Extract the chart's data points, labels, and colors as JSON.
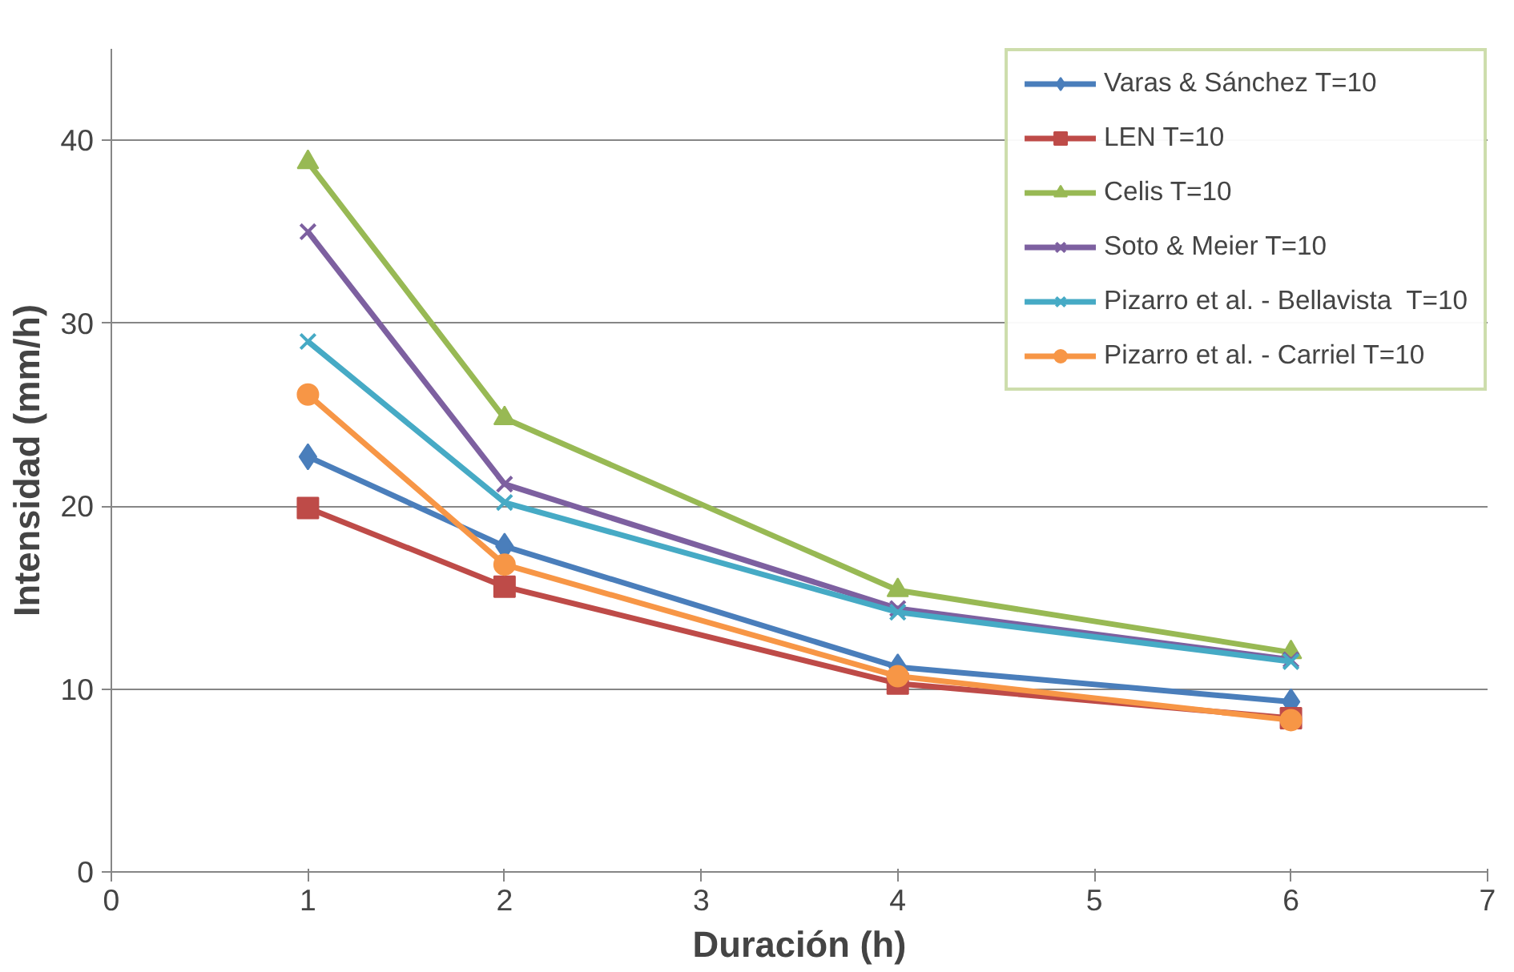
{
  "chart_data": {
    "type": "line",
    "xlabel": "Duración (h)",
    "ylabel": "Intensidad (mm/h)",
    "x": [
      1,
      2,
      4,
      6
    ],
    "xlim": [
      0,
      7
    ],
    "xticks": [
      0,
      1,
      2,
      3,
      4,
      5,
      6,
      7
    ],
    "ylim": [
      0,
      45
    ],
    "yticks": [
      0,
      10,
      20,
      30,
      40
    ],
    "grid": "y",
    "legend": "top right",
    "series": [
      {
        "name": "Varas & Sánchez T=10",
        "color": "#4a7ebb",
        "marker": "diamond",
        "values": [
          22.7,
          17.8,
          11.2,
          9.3
        ]
      },
      {
        "name": "LEN T=10",
        "color": "#be4b48",
        "marker": "square",
        "values": [
          19.9,
          15.6,
          10.3,
          8.4
        ]
      },
      {
        "name": "Celis T=10",
        "color": "#98b954",
        "marker": "triangle",
        "values": [
          38.8,
          24.8,
          15.4,
          12.0
        ]
      },
      {
        "name": "Soto & Meier T=10",
        "color": "#7d60a0",
        "marker": "cross",
        "values": [
          35.0,
          21.2,
          14.4,
          11.6
        ]
      },
      {
        "name": "Pizarro et al. - Bellavista  T=10",
        "color": "#46aac5",
        "marker": "cross",
        "values": [
          29.0,
          20.2,
          14.2,
          11.5
        ]
      },
      {
        "name": "Pizarro et al. - Carriel T=10",
        "color": "#f79646",
        "marker": "circle",
        "values": [
          26.1,
          16.8,
          10.7,
          8.3
        ]
      }
    ]
  }
}
